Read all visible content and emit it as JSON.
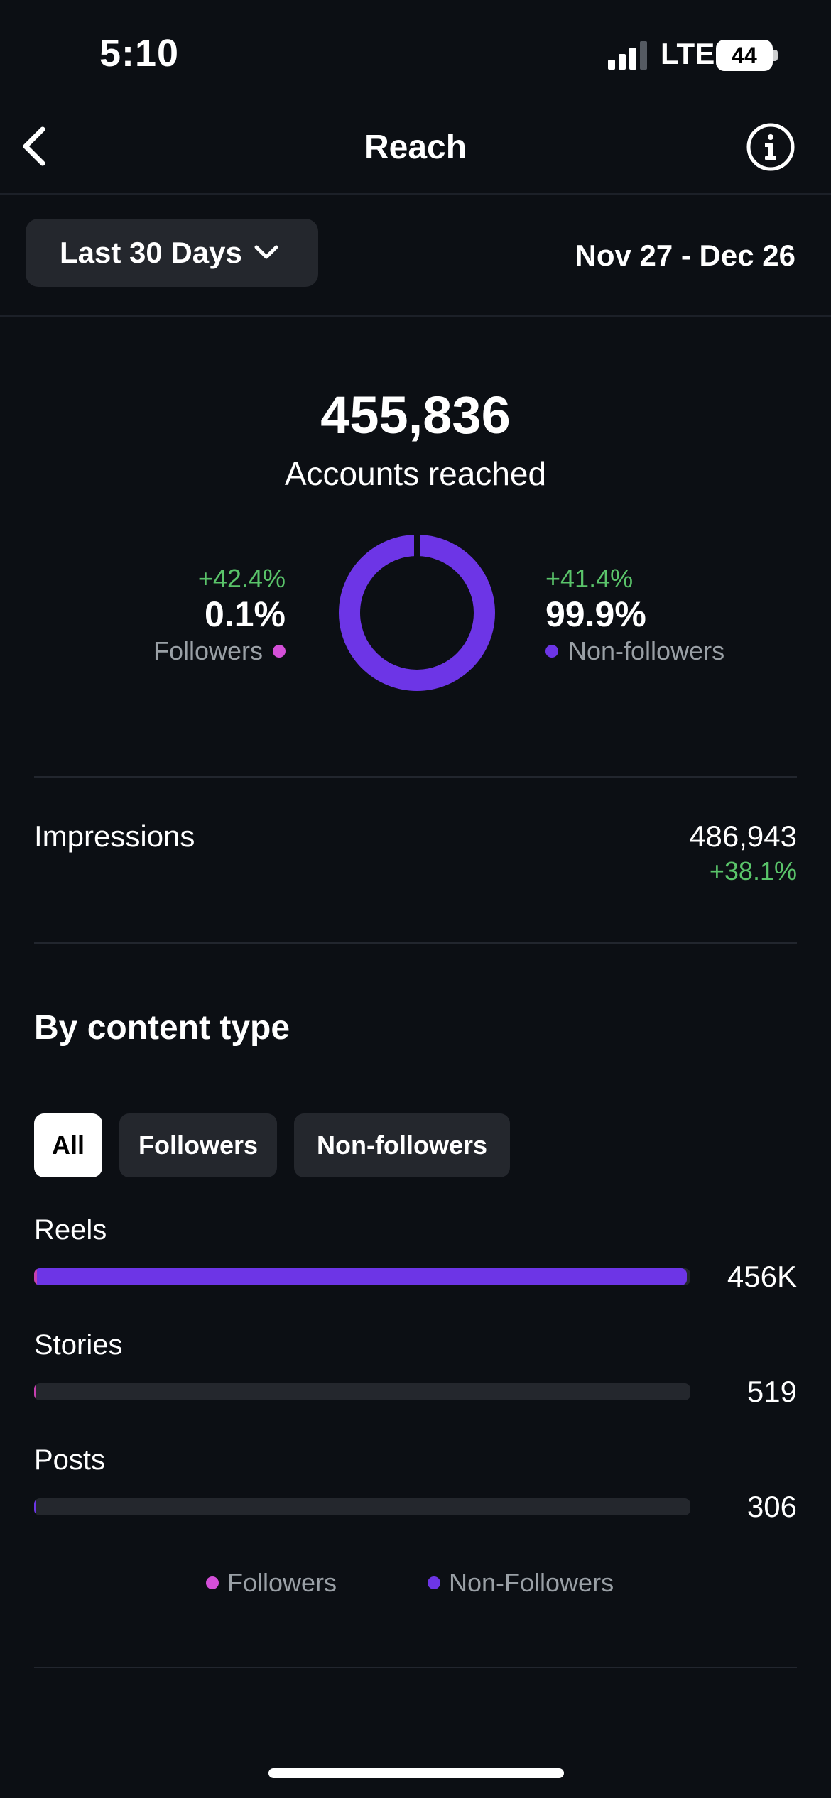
{
  "status_bar": {
    "time": "5:10",
    "network": "LTE",
    "battery": "44"
  },
  "nav": {
    "title": "Reach",
    "back_icon": "chevron-left-icon",
    "info_icon": "info-icon"
  },
  "range": {
    "label": "Last 30 Days",
    "dates": "Nov 27 - Dec 26"
  },
  "summary": {
    "value": "455,836",
    "label": "Accounts reached",
    "followers": {
      "change": "+42.4%",
      "percent": "0.1%",
      "label": "Followers",
      "fraction": 0.001
    },
    "non_followers": {
      "change": "+41.4%",
      "percent": "99.9%",
      "label": "Non-followers",
      "fraction": 0.999
    }
  },
  "impressions": {
    "label": "Impressions",
    "value": "486,943",
    "change": "+38.1%"
  },
  "content_type": {
    "title": "By content type",
    "tabs": [
      "All",
      "Followers",
      "Non-followers"
    ],
    "active_tab": "All",
    "rows": [
      {
        "label": "Reels",
        "value": "456K",
        "followers_fraction": 0.004,
        "non_followers_fraction": 0.991
      },
      {
        "label": "Stories",
        "value": "519",
        "followers_fraction": 0.003,
        "non_followers_fraction": 0.0
      },
      {
        "label": "Posts",
        "value": "306",
        "followers_fraction": 0.0,
        "non_followers_fraction": 0.003
      }
    ],
    "legend": [
      "Followers",
      "Non-Followers"
    ]
  },
  "colors": {
    "background": "#0c0f14",
    "followers": "#d44fd8",
    "non_followers": "#6d35e6",
    "positive": "#5ac46a",
    "muted": "#9aa0a6"
  }
}
